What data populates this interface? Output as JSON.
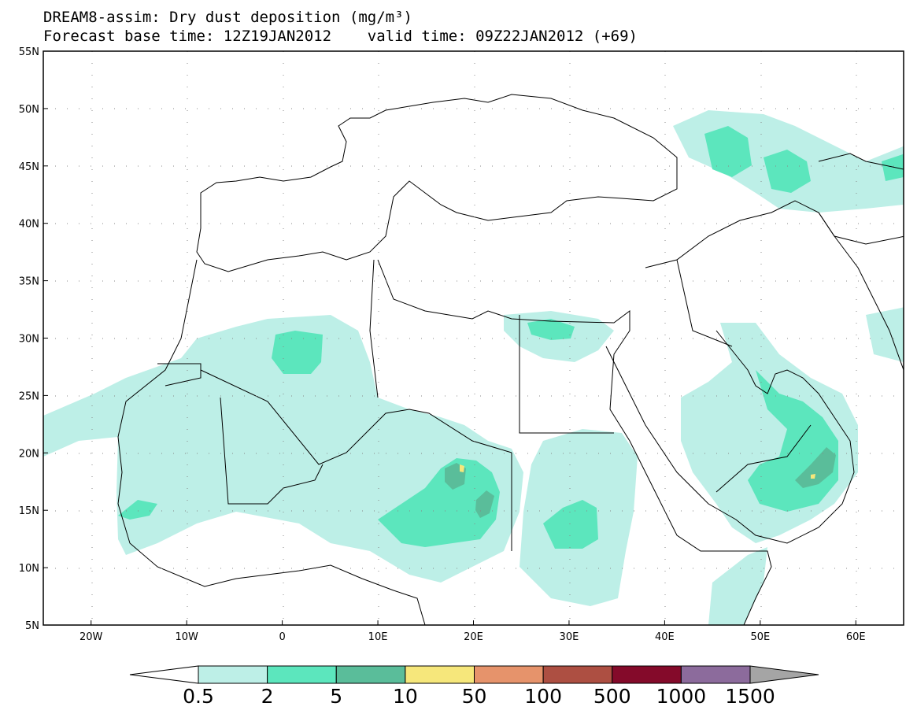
{
  "title_line1": "DREAM8-assim: Dry dust deposition (mg/m³)",
  "title_line2": "Forecast base time: 12Z19JAN2012    valid time: 09Z22JAN2012 (+69)",
  "map": {
    "lon_range": [
      -25,
      65
    ],
    "lat_range": [
      5,
      55
    ],
    "lat_ticks": [
      {
        "value": 55,
        "label": "55N"
      },
      {
        "value": 50,
        "label": "50N"
      },
      {
        "value": 45,
        "label": "45N"
      },
      {
        "value": 40,
        "label": "40N"
      },
      {
        "value": 35,
        "label": "35N"
      },
      {
        "value": 30,
        "label": "30N"
      },
      {
        "value": 25,
        "label": "25N"
      },
      {
        "value": 20,
        "label": "20N"
      },
      {
        "value": 15,
        "label": "15N"
      },
      {
        "value": 10,
        "label": "10N"
      },
      {
        "value": 5,
        "label": "5N"
      }
    ],
    "lon_ticks": [
      {
        "value": -20,
        "label": "20W"
      },
      {
        "value": -10,
        "label": "10W"
      },
      {
        "value": 0,
        "label": "0"
      },
      {
        "value": 10,
        "label": "10E"
      },
      {
        "value": 20,
        "label": "20E"
      },
      {
        "value": 30,
        "label": "30E"
      },
      {
        "value": 40,
        "label": "40E"
      },
      {
        "value": 50,
        "label": "50E"
      },
      {
        "value": 60,
        "label": "60E"
      }
    ],
    "grid": "dotted"
  },
  "colorbar": {
    "colors": [
      "#ffffff",
      "#bdefe7",
      "#5ce6bd",
      "#5abd9a",
      "#f6e77b",
      "#e6936b",
      "#ad4f42",
      "#840a2a",
      "#8c6b9c",
      "#a5a5a5"
    ],
    "labels": [
      "0.5",
      "2",
      "5",
      "10",
      "50",
      "100",
      "500",
      "1000",
      "1500"
    ]
  }
}
